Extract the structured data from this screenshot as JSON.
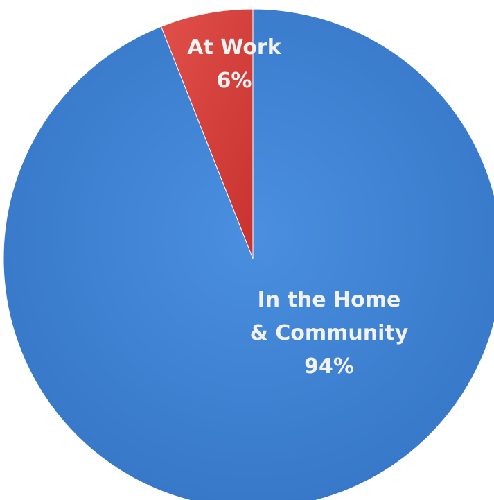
{
  "chart_data": {
    "type": "pie",
    "title": "",
    "slices": [
      {
        "label_lines": [
          "At Work"
        ],
        "value_label": "6%",
        "value": 6,
        "color": "#d9423e"
      },
      {
        "label_lines": [
          "In the Home",
          "& Community"
        ],
        "value_label": "94%",
        "value": 94,
        "color": "#3f84d8"
      }
    ],
    "start_angle": "12 o'clock",
    "direction": "counter-clockwise",
    "legend": "none",
    "labels_inside": true
  }
}
